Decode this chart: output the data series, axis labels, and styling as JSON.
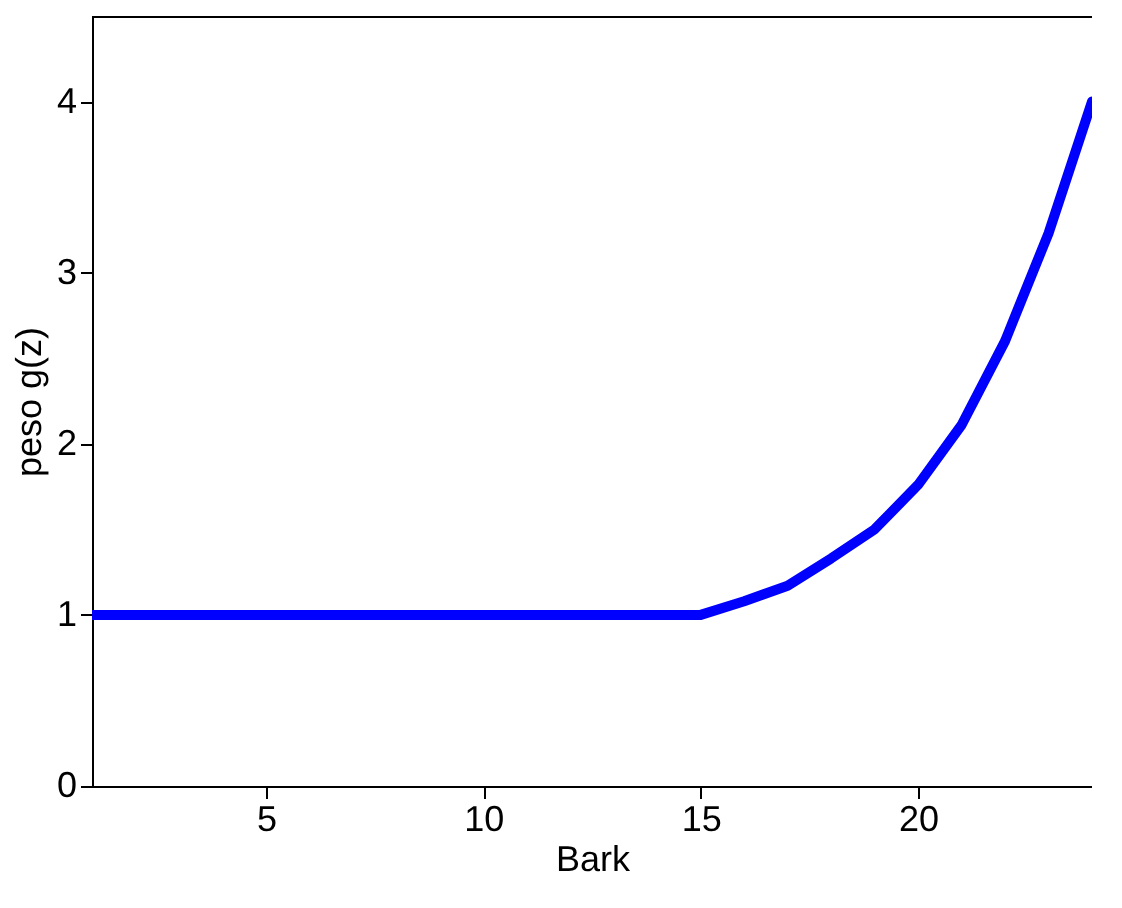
{
  "chart_data": {
    "type": "line",
    "xlabel": "Bark",
    "ylabel": "peso g(z)",
    "x": [
      1,
      15,
      16,
      17,
      18,
      19,
      20,
      21,
      22,
      23,
      24
    ],
    "series": [
      {
        "color": "#0000ff",
        "values": [
          1,
          1,
          1.08,
          1.17,
          1.33,
          1.5,
          1.76,
          2.11,
          2.6,
          3.23,
          4.0
        ]
      }
    ],
    "xlim": [
      1,
      24
    ],
    "xticks": [
      5,
      10,
      15,
      20
    ],
    "ylim": [
      0,
      4.5
    ],
    "yticks": [
      0,
      1,
      2,
      3,
      4
    ],
    "grid": false,
    "marker": "none",
    "line_style": "solid"
  }
}
